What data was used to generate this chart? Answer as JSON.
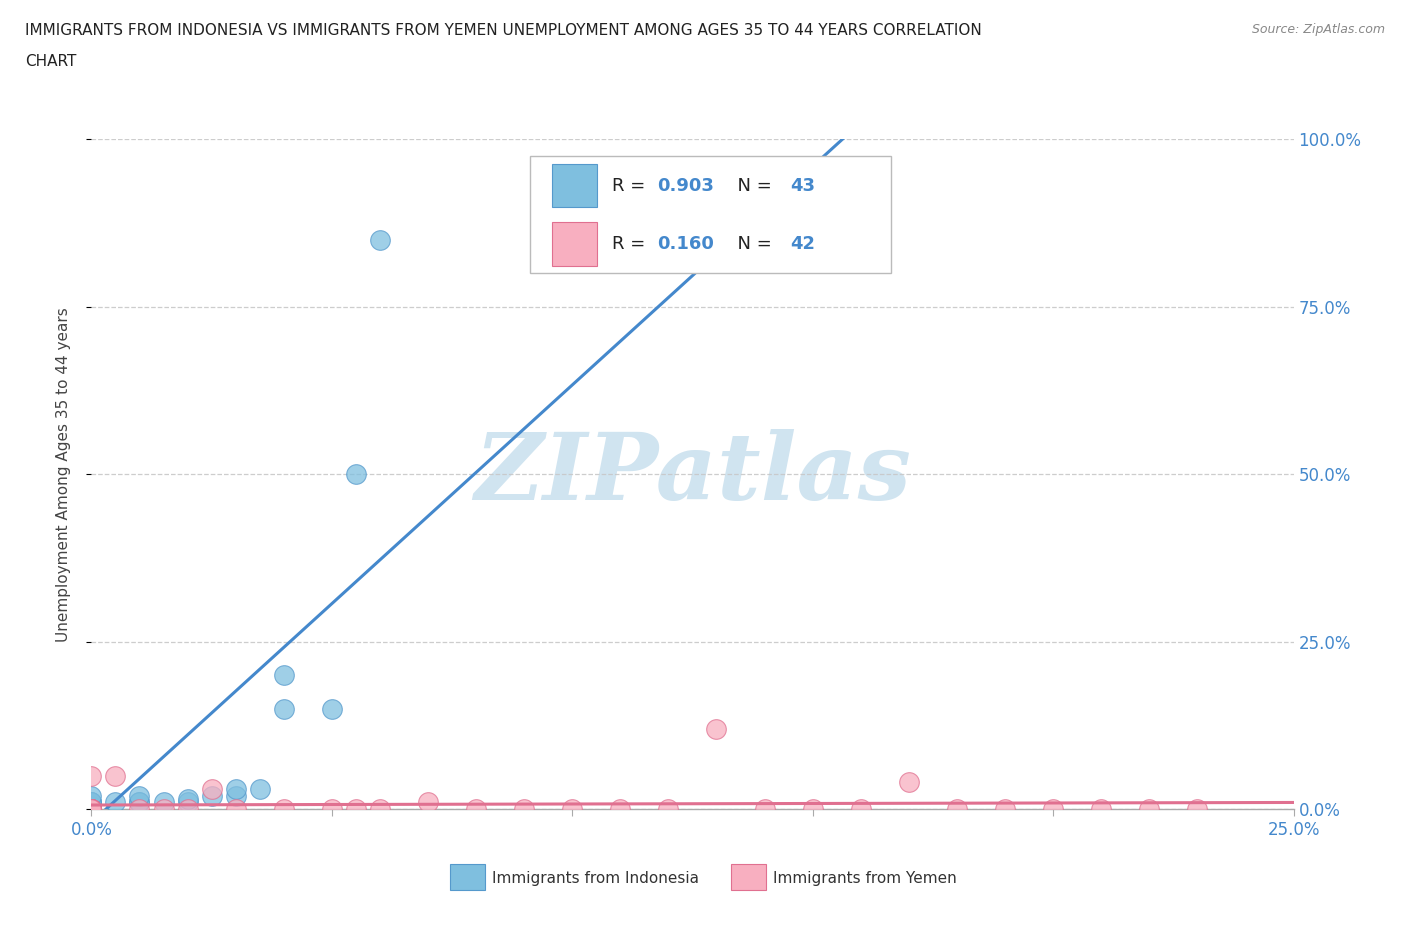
{
  "title_line1": "IMMIGRANTS FROM INDONESIA VS IMMIGRANTS FROM YEMEN UNEMPLOYMENT AMONG AGES 35 TO 44 YEARS CORRELATION",
  "title_line2": "CHART",
  "source_text": "Source: ZipAtlas.com",
  "ylabel": "Unemployment Among Ages 35 to 44 years",
  "xlim": [
    0.0,
    0.25
  ],
  "ylim": [
    0.0,
    1.0
  ],
  "xticks": [
    0.0,
    0.05,
    0.1,
    0.15,
    0.2,
    0.25
  ],
  "yticks": [
    0.0,
    0.25,
    0.5,
    0.75,
    1.0
  ],
  "xtick_labels_show": {
    "0.0": "0.0%",
    "0.25": "25.0%"
  },
  "ytick_labels": [
    "0.0%",
    "25.0%",
    "50.0%",
    "75.0%",
    "100.0%"
  ],
  "indonesia_color": "#7fbfdf",
  "indonesia_edge": "#5599cc",
  "yemen_color": "#f8afc0",
  "yemen_edge": "#e07090",
  "indonesia_line_color": "#4488cc",
  "yemen_line_color": "#e07090",
  "indonesia_R": 0.903,
  "indonesia_N": 43,
  "yemen_R": 0.16,
  "yemen_N": 42,
  "watermark": "ZIPatlas",
  "watermark_color": "#d0e4f0",
  "background_color": "#ffffff",
  "grid_color": "#c8c8c8",
  "tick_label_color": "#4488cc",
  "indo_x": [
    0.0,
    0.0,
    0.0,
    0.0,
    0.0,
    0.0,
    0.0,
    0.0,
    0.0,
    0.0,
    0.0,
    0.0,
    0.0,
    0.0,
    0.0,
    0.0,
    0.0,
    0.0,
    0.0,
    0.0,
    0.0,
    0.0,
    0.0,
    0.0,
    0.0,
    0.0,
    0.0,
    0.005,
    0.01,
    0.01,
    0.01,
    0.015,
    0.02,
    0.02,
    0.025,
    0.03,
    0.03,
    0.035,
    0.04,
    0.04,
    0.05,
    0.055,
    0.06
  ],
  "indo_y": [
    0.0,
    0.0,
    0.0,
    0.0,
    0.0,
    0.0,
    0.0,
    0.0,
    0.0,
    0.0,
    0.0,
    0.0,
    0.0,
    0.0,
    0.0,
    0.0,
    0.005,
    0.005,
    0.005,
    0.005,
    0.005,
    0.005,
    0.005,
    0.01,
    0.01,
    0.01,
    0.02,
    0.01,
    0.01,
    0.01,
    0.02,
    0.01,
    0.01,
    0.015,
    0.02,
    0.02,
    0.03,
    0.03,
    0.15,
    0.2,
    0.15,
    0.5,
    0.85
  ],
  "yemen_x": [
    0.0,
    0.0,
    0.0,
    0.0,
    0.0,
    0.0,
    0.0,
    0.0,
    0.0,
    0.0,
    0.0,
    0.0,
    0.0,
    0.0,
    0.0,
    0.005,
    0.01,
    0.015,
    0.02,
    0.025,
    0.03,
    0.04,
    0.05,
    0.055,
    0.06,
    0.07,
    0.08,
    0.09,
    0.1,
    0.11,
    0.12,
    0.13,
    0.14,
    0.15,
    0.16,
    0.17,
    0.18,
    0.19,
    0.2,
    0.21,
    0.22,
    0.23
  ],
  "yemen_y": [
    0.0,
    0.0,
    0.0,
    0.0,
    0.0,
    0.0,
    0.0,
    0.0,
    0.0,
    0.0,
    0.0,
    0.0,
    0.0,
    0.0,
    0.05,
    0.05,
    0.0,
    0.0,
    0.0,
    0.03,
    0.0,
    0.0,
    0.0,
    0.0,
    0.0,
    0.01,
    0.0,
    0.0,
    0.0,
    0.0,
    0.0,
    0.12,
    0.0,
    0.0,
    0.0,
    0.04,
    0.0,
    0.0,
    0.0,
    0.0,
    0.0,
    0.0
  ],
  "bottom_legend_items": [
    {
      "label": "Immigrants from Indonesia",
      "color": "#7fbfdf",
      "edge": "#5599cc"
    },
    {
      "label": "Immigrants from Yemen",
      "color": "#f8afc0",
      "edge": "#e07090"
    }
  ]
}
